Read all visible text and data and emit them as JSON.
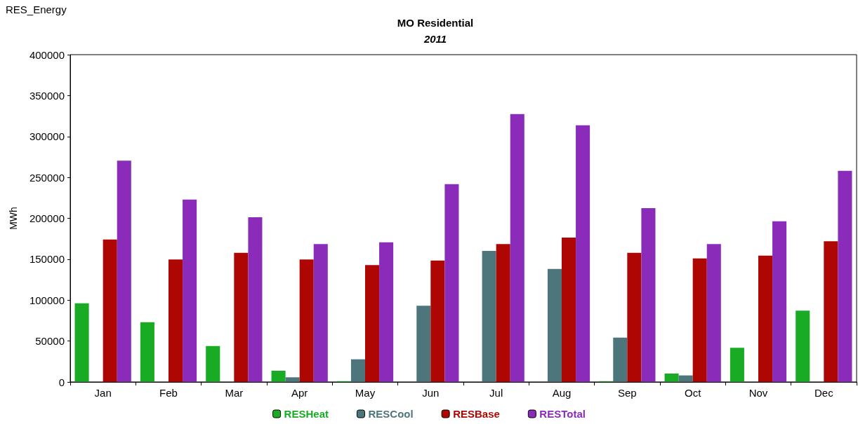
{
  "chart_data": {
    "type": "bar",
    "title": "MO Residential",
    "subtitle": "2011",
    "ylabel": "MWh",
    "annotations": [
      "RES_Energy"
    ],
    "categories": [
      "Jan",
      "Feb",
      "Mar",
      "Apr",
      "May",
      "Jun",
      "Jul",
      "Aug",
      "Sep",
      "Oct",
      "Nov",
      "Dec"
    ],
    "series": [
      {
        "name": "RESHeat",
        "color": "#1aab25",
        "values": [
          96200,
          73100,
          43900,
          13700,
          1000,
          0,
          0,
          0,
          1000,
          10300,
          41700,
          87100
        ]
      },
      {
        "name": "RESCool",
        "color": "#4d767c",
        "values": [
          0,
          0,
          0,
          5700,
          27700,
          93100,
          160200,
          138200,
          54200,
          8000,
          0,
          0
        ]
      },
      {
        "name": "RESBase",
        "color": "#ae0602",
        "values": [
          174100,
          149600,
          157900,
          149600,
          142800,
          148400,
          168500,
          176400,
          157900,
          151000,
          154400,
          171900
        ]
      },
      {
        "name": "RESTotal",
        "color": "#8a2cb9",
        "values": [
          270400,
          223000,
          201300,
          168500,
          170700,
          241800,
          327500,
          313800,
          212400,
          168500,
          196400,
          258100
        ]
      }
    ],
    "ylim": [
      0,
      400000
    ],
    "yticks": [
      0,
      50000,
      100000,
      150000,
      200000,
      250000,
      300000,
      350000,
      400000
    ],
    "grid": false,
    "legend": "bottom"
  }
}
